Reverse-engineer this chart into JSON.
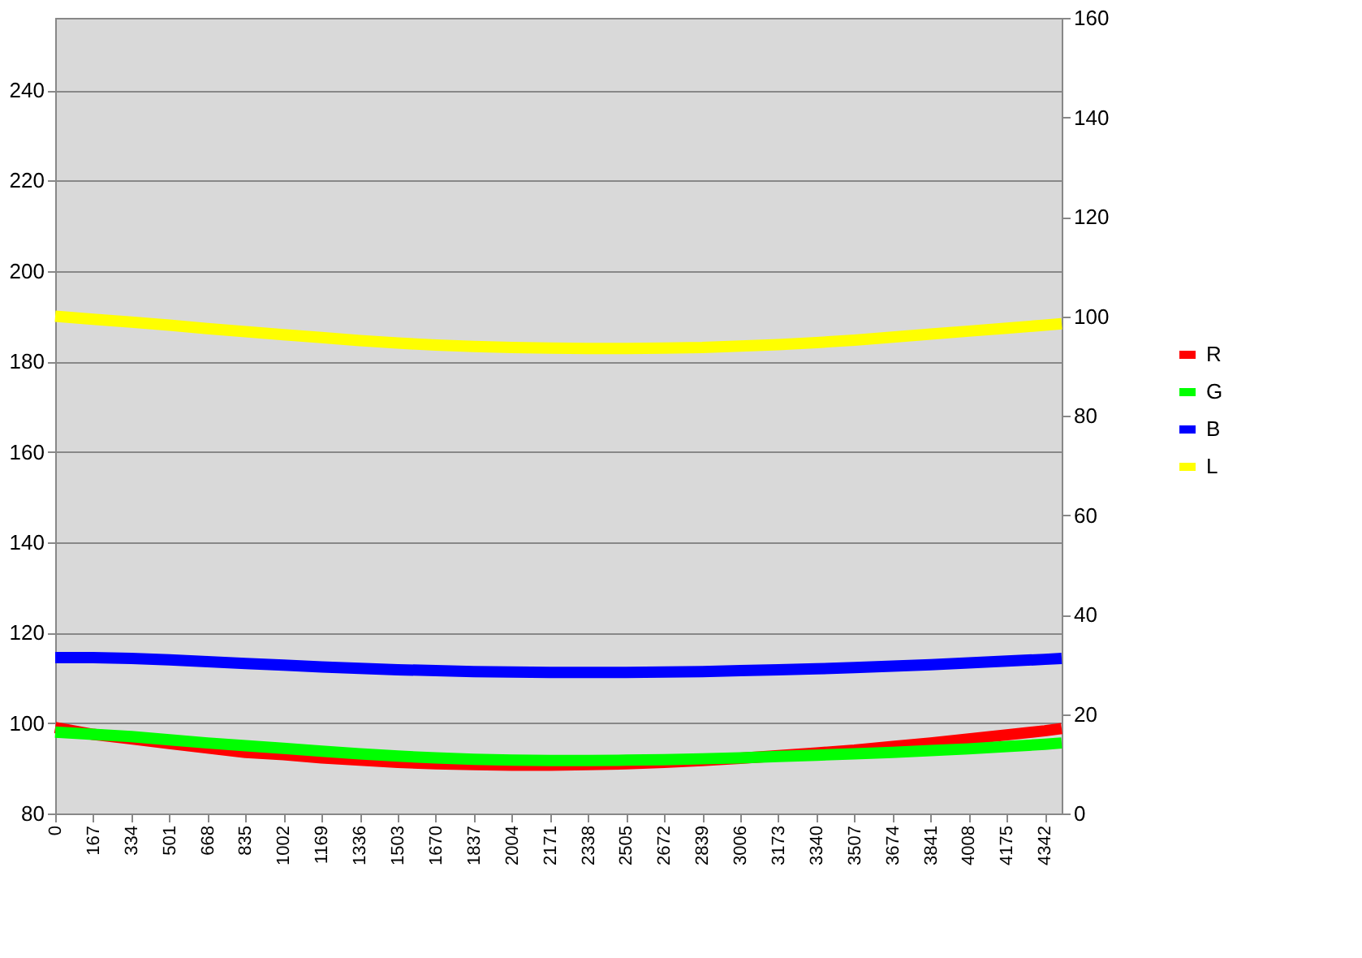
{
  "chart_data": {
    "type": "line",
    "x": [
      0,
      167,
      334,
      501,
      668,
      835,
      1002,
      1169,
      1336,
      1503,
      1670,
      1837,
      2004,
      2171,
      2338,
      2505,
      2672,
      2839,
      3006,
      3173,
      3340,
      3507,
      3674,
      3841,
      4008,
      4175,
      4342,
      4416
    ],
    "series": [
      {
        "name": "R",
        "color": "#ff0000",
        "values": [
          99,
          97.5,
          96.5,
          95.5,
          94.5,
          93.5,
          93,
          92.3,
          91.8,
          91.3,
          91,
          90.8,
          90.7,
          90.7,
          90.8,
          91,
          91.3,
          91.7,
          92.2,
          92.8,
          93.4,
          94,
          94.8,
          95.6,
          96.5,
          97.4,
          98.3,
          98.8
        ]
      },
      {
        "name": "G",
        "color": "#00ff00",
        "values": [
          98,
          97.5,
          97,
          96.3,
          95.6,
          95,
          94.4,
          93.8,
          93.2,
          92.7,
          92.3,
          92,
          91.8,
          91.7,
          91.7,
          91.8,
          91.9,
          92.1,
          92.3,
          92.6,
          92.9,
          93.2,
          93.5,
          93.9,
          94.3,
          94.8,
          95.3,
          95.6
        ]
      },
      {
        "name": "B",
        "color": "#0000ff",
        "values": [
          114.5,
          114.5,
          114.3,
          114,
          113.6,
          113.2,
          112.8,
          112.4,
          112.1,
          111.8,
          111.6,
          111.4,
          111.3,
          111.2,
          111.2,
          111.2,
          111.3,
          111.4,
          111.6,
          111.8,
          112,
          112.3,
          112.6,
          112.9,
          113.3,
          113.7,
          114.1,
          114.3
        ]
      },
      {
        "name": "L",
        "color": "#ffff00",
        "axis": "y2",
        "values": [
          100,
          99.4,
          98.8,
          98.2,
          97.5,
          96.9,
          96.3,
          95.7,
          95.1,
          94.6,
          94.2,
          93.9,
          93.7,
          93.6,
          93.5,
          93.5,
          93.6,
          93.7,
          94,
          94.3,
          94.7,
          95.2,
          95.8,
          96.4,
          97,
          97.6,
          98.2,
          98.5
        ]
      }
    ],
    "xlim": [
      0,
      4416
    ],
    "xticks": [
      0,
      167,
      334,
      501,
      668,
      835,
      1002,
      1169,
      1336,
      1503,
      1670,
      1837,
      2004,
      2171,
      2338,
      2505,
      2672,
      2839,
      3006,
      3173,
      3340,
      3507,
      3674,
      3841,
      4008,
      4175,
      4342
    ],
    "ylim": [
      80,
      256
    ],
    "yticks": [
      80,
      100,
      120,
      140,
      160,
      180,
      200,
      220,
      240
    ],
    "y2lim": [
      0,
      160
    ],
    "y2ticks": [
      0,
      20,
      40,
      60,
      80,
      100,
      120,
      140,
      160
    ],
    "grid": "y",
    "legend": "right",
    "marker": "none",
    "line_style": "solid"
  }
}
